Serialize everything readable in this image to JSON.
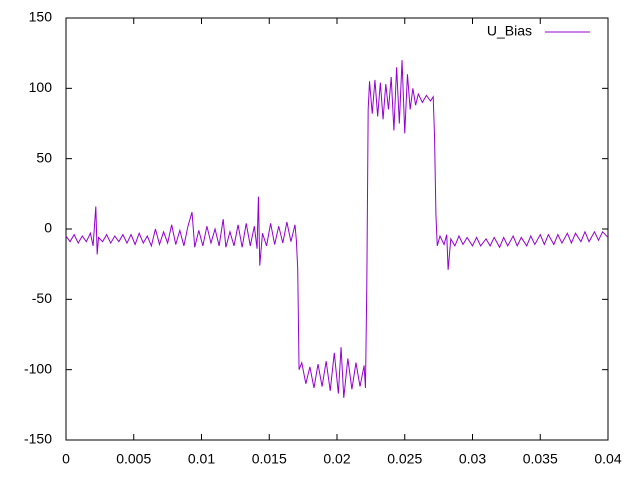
{
  "chart_data": {
    "type": "line",
    "x": [
      0,
      0.0003,
      0.0006,
      0.0009,
      0.0012,
      0.0015,
      0.0018,
      0.002,
      0.0021,
      0.0022,
      0.0023,
      0.0024,
      0.0027,
      0.003,
      0.0033,
      0.0036,
      0.0039,
      0.0042,
      0.0045,
      0.0048,
      0.0051,
      0.0054,
      0.0057,
      0.006,
      0.0063,
      0.0066,
      0.0069,
      0.0072,
      0.0075,
      0.0078,
      0.0081,
      0.0084,
      0.0087,
      0.009,
      0.0093,
      0.0095,
      0.0098,
      0.0101,
      0.0104,
      0.0107,
      0.011,
      0.0113,
      0.0116,
      0.0118,
      0.0121,
      0.0124,
      0.0127,
      0.013,
      0.0133,
      0.0136,
      0.0139,
      0.0141,
      0.0142,
      0.0143,
      0.0145,
      0.0148,
      0.0151,
      0.0154,
      0.0157,
      0.016,
      0.0163,
      0.0166,
      0.0169,
      0.017,
      0.0171,
      0.0172,
      0.0174,
      0.0177,
      0.018,
      0.0183,
      0.0186,
      0.0189,
      0.0192,
      0.0195,
      0.0198,
      0.0201,
      0.0203,
      0.0205,
      0.0208,
      0.0211,
      0.0214,
      0.0217,
      0.022,
      0.0221,
      0.0222,
      0.0223,
      0.0224,
      0.0226,
      0.0228,
      0.023,
      0.0232,
      0.0234,
      0.0236,
      0.0238,
      0.024,
      0.0242,
      0.0244,
      0.0246,
      0.0248,
      0.025,
      0.0252,
      0.0254,
      0.0256,
      0.0258,
      0.026,
      0.0263,
      0.0266,
      0.0269,
      0.0271,
      0.0272,
      0.0273,
      0.0274,
      0.0276,
      0.0279,
      0.0281,
      0.0282,
      0.0284,
      0.0287,
      0.029,
      0.0293,
      0.0296,
      0.03,
      0.0303,
      0.0306,
      0.031,
      0.0313,
      0.0316,
      0.032,
      0.0323,
      0.0326,
      0.033,
      0.0333,
      0.0336,
      0.034,
      0.0343,
      0.0346,
      0.035,
      0.0353,
      0.0356,
      0.036,
      0.0363,
      0.0366,
      0.037,
      0.0373,
      0.0376,
      0.038,
      0.0383,
      0.0386,
      0.039,
      0.0393,
      0.0396,
      0.04
    ],
    "series": [
      {
        "name": "U_Bias",
        "color": "#9400d3",
        "values": [
          -5,
          -9,
          -4,
          -10,
          -5,
          -9,
          -3,
          -12,
          2,
          16,
          -18,
          -6,
          -9,
          -4,
          -10,
          -5,
          -9,
          -4,
          -10,
          -4,
          -11,
          -3,
          -10,
          -5,
          -12,
          0,
          -11,
          -2,
          -10,
          3,
          -11,
          -1,
          -12,
          2,
          12,
          -13,
          -1,
          -12,
          2,
          -10,
          0,
          -12,
          7,
          -13,
          -2,
          -12,
          3,
          -13,
          4,
          -12,
          2,
          -14,
          23,
          -26,
          -3,
          -12,
          4,
          -11,
          2,
          -10,
          5,
          -9,
          3,
          -8,
          -28,
          -100,
          -95,
          -110,
          -98,
          -113,
          -96,
          -112,
          -94,
          -115,
          -88,
          -117,
          -84,
          -120,
          -92,
          -114,
          -95,
          -112,
          -97,
          -113,
          -40,
          85,
          105,
          82,
          106,
          80,
          104,
          78,
          103,
          85,
          108,
          70,
          115,
          75,
          120,
          68,
          110,
          85,
          100,
          88,
          96,
          90,
          95,
          91,
          94,
          65,
          10,
          -12,
          -5,
          -11,
          -4,
          -29,
          -7,
          -12,
          -5,
          -11,
          -6,
          -12,
          -6,
          -12,
          -7,
          -12,
          -6,
          -13,
          -6,
          -12,
          -5,
          -12,
          -6,
          -12,
          -5,
          -11,
          -4,
          -11,
          -4,
          -11,
          -4,
          -10,
          -3,
          -10,
          -3,
          -9,
          -2,
          -9,
          -2,
          -8,
          -2,
          -6
        ]
      }
    ],
    "xlim": [
      0,
      0.04
    ],
    "xticks": [
      0,
      0.005,
      0.01,
      0.015,
      0.02,
      0.025,
      0.03,
      0.035,
      0.04
    ],
    "ylim": [
      -150,
      150
    ],
    "yticks": [
      -150,
      -100,
      -50,
      0,
      50,
      100,
      150
    ],
    "legend": "top-right"
  }
}
